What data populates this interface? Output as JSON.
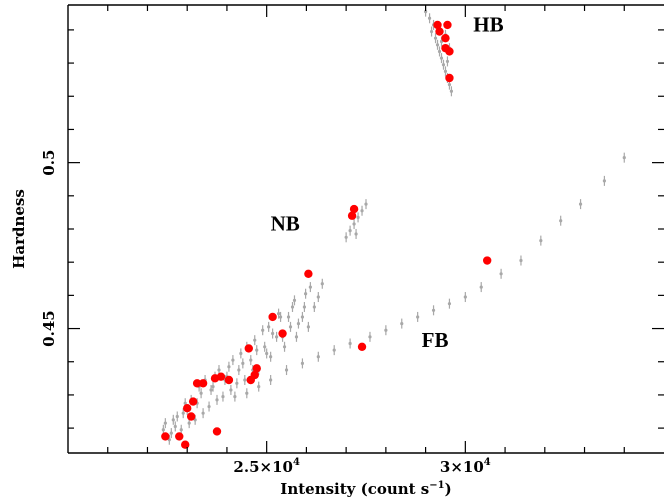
{
  "chart_data": {
    "type": "scatter",
    "xlabel_main": "Intensity (count s",
    "xlabel_sup": "−1",
    "xlabel_end": ")",
    "ylabel": "Hardness",
    "xlim": [
      20000,
      35000
    ],
    "ylim": [
      0.4125,
      0.5475
    ],
    "x_ticks": [
      {
        "value": 25000,
        "mantissa": "2.5×10",
        "exp": "4"
      },
      {
        "value": 30000,
        "mantissa": "3×10",
        "exp": "4"
      }
    ],
    "y_ticks": [
      {
        "value": 0.45,
        "label": "0.45"
      },
      {
        "value": 0.5,
        "label": "0.5"
      }
    ],
    "annotations": [
      {
        "text": "HB",
        "x": 30200,
        "y": 0.5395
      },
      {
        "text": "NB",
        "x": 25100,
        "y": 0.4795
      },
      {
        "text": "FB",
        "x": 28900,
        "y": 0.4445
      }
    ],
    "series": [
      {
        "color": "#a8a8a8",
        "points": [
          [
            22450,
            0.4215
          ],
          [
            22600,
            0.4185
          ],
          [
            22750,
            0.4235
          ],
          [
            22850,
            0.4195
          ],
          [
            23000,
            0.4255
          ],
          [
            23100,
            0.4285
          ],
          [
            23200,
            0.4225
          ],
          [
            23350,
            0.4305
          ],
          [
            23450,
            0.4345
          ],
          [
            23550,
            0.4265
          ],
          [
            23650,
            0.4325
          ],
          [
            23800,
            0.4375
          ],
          [
            23900,
            0.4295
          ],
          [
            24000,
            0.4355
          ],
          [
            24150,
            0.4405
          ],
          [
            24250,
            0.4335
          ],
          [
            24400,
            0.4395
          ],
          [
            24500,
            0.4445
          ],
          [
            24650,
            0.4375
          ],
          [
            24750,
            0.4435
          ],
          [
            24900,
            0.4495
          ],
          [
            25000,
            0.4425
          ],
          [
            25150,
            0.4485
          ],
          [
            25300,
            0.4545
          ],
          [
            25400,
            0.4475
          ],
          [
            25550,
            0.4535
          ],
          [
            25700,
            0.4585
          ],
          [
            25800,
            0.4515
          ],
          [
            25950,
            0.4565
          ],
          [
            26100,
            0.4625
          ],
          [
            26200,
            0.4565
          ],
          [
            26300,
            0.4595
          ],
          [
            26400,
            0.4635
          ],
          [
            22550,
            0.4165
          ],
          [
            22700,
            0.4205
          ],
          [
            22900,
            0.4245
          ],
          [
            23050,
            0.4215
          ],
          [
            23250,
            0.4275
          ],
          [
            23400,
            0.4245
          ],
          [
            23600,
            0.4315
          ],
          [
            23750,
            0.4285
          ],
          [
            23950,
            0.4345
          ],
          [
            24100,
            0.4315
          ],
          [
            24300,
            0.4375
          ],
          [
            24450,
            0.4345
          ],
          [
            24600,
            0.4405
          ],
          [
            24800,
            0.4375
          ],
          [
            24950,
            0.4445
          ],
          [
            25100,
            0.4415
          ],
          [
            25250,
            0.4475
          ],
          [
            25450,
            0.4445
          ],
          [
            25600,
            0.4505
          ],
          [
            25750,
            0.4475
          ],
          [
            25900,
            0.4535
          ],
          [
            26050,
            0.4505
          ],
          [
            22400,
            0.4195
          ],
          [
            22650,
            0.4225
          ],
          [
            22950,
            0.4275
          ],
          [
            23300,
            0.4325
          ],
          [
            23700,
            0.4355
          ],
          [
            24050,
            0.4385
          ],
          [
            24350,
            0.4425
          ],
          [
            24700,
            0.4465
          ],
          [
            25050,
            0.4505
          ],
          [
            25350,
            0.4535
          ],
          [
            25650,
            0.4565
          ],
          [
            25980,
            0.4605
          ],
          [
            27000,
            0.4775
          ],
          [
            27100,
            0.4795
          ],
          [
            27200,
            0.4815
          ],
          [
            27300,
            0.4835
          ],
          [
            27400,
            0.4855
          ],
          [
            27500,
            0.4875
          ],
          [
            27250,
            0.4785
          ],
          [
            24200,
            0.4295
          ],
          [
            24500,
            0.4305
          ],
          [
            24800,
            0.4325
          ],
          [
            25100,
            0.4345
          ],
          [
            25500,
            0.4375
          ],
          [
            25900,
            0.4395
          ],
          [
            26300,
            0.4415
          ],
          [
            26700,
            0.4435
          ],
          [
            27100,
            0.4455
          ],
          [
            27600,
            0.4475
          ],
          [
            28000,
            0.4495
          ],
          [
            28400,
            0.4515
          ],
          [
            28800,
            0.4535
          ],
          [
            29200,
            0.4555
          ],
          [
            29600,
            0.4575
          ],
          [
            30000,
            0.4595
          ],
          [
            30400,
            0.4625
          ],
          [
            30900,
            0.4665
          ],
          [
            31400,
            0.4705
          ],
          [
            31900,
            0.4765
          ],
          [
            32400,
            0.4825
          ],
          [
            32900,
            0.4875
          ],
          [
            33500,
            0.4945
          ],
          [
            34000,
            0.5015
          ],
          [
            29000,
            0.5455
          ],
          [
            29100,
            0.5435
          ],
          [
            29200,
            0.5415
          ],
          [
            29150,
            0.5395
          ],
          [
            29250,
            0.5375
          ],
          [
            29300,
            0.5355
          ],
          [
            29350,
            0.5335
          ],
          [
            29400,
            0.5315
          ],
          [
            29450,
            0.5295
          ],
          [
            29500,
            0.5275
          ],
          [
            29550,
            0.5255
          ],
          [
            29600,
            0.5235
          ],
          [
            29650,
            0.5215
          ],
          [
            29400,
            0.5365
          ],
          [
            29500,
            0.5385
          ],
          [
            29350,
            0.5405
          ],
          [
            29600,
            0.5345
          ],
          [
            29550,
            0.5305
          ]
        ]
      },
      {
        "color": "#ff0000",
        "points": [
          [
            22450,
            0.4175
          ],
          [
            22800,
            0.4175
          ],
          [
            22950,
            0.415
          ],
          [
            23000,
            0.426
          ],
          [
            23100,
            0.4235
          ],
          [
            23150,
            0.428
          ],
          [
            23250,
            0.4335
          ],
          [
            23400,
            0.4335
          ],
          [
            23700,
            0.435
          ],
          [
            23850,
            0.4355
          ],
          [
            24050,
            0.4345
          ],
          [
            23750,
            0.419
          ],
          [
            24600,
            0.4345
          ],
          [
            24700,
            0.436
          ],
          [
            24750,
            0.438
          ],
          [
            24550,
            0.444
          ],
          [
            25400,
            0.4485
          ],
          [
            25150,
            0.4535
          ],
          [
            26050,
            0.4665
          ],
          [
            27150,
            0.484
          ],
          [
            27200,
            0.486
          ],
          [
            27400,
            0.4445
          ],
          [
            30550,
            0.4705
          ],
          [
            29300,
            0.5415
          ],
          [
            29350,
            0.5395
          ],
          [
            29550,
            0.5415
          ],
          [
            29500,
            0.5375
          ],
          [
            29500,
            0.5345
          ],
          [
            29600,
            0.5335
          ],
          [
            29600,
            0.5255
          ]
        ]
      }
    ]
  }
}
